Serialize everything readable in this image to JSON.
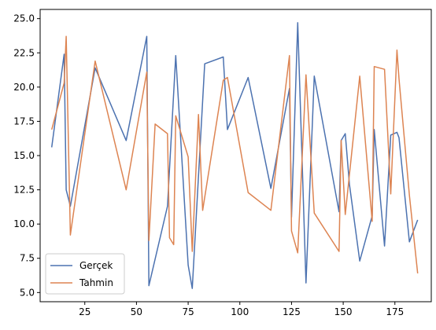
{
  "chart_data": {
    "type": "line",
    "xlim": [
      3.4,
      192.6
    ],
    "ylim": [
      4.33,
      25.67
    ],
    "x_ticks": [
      25,
      50,
      75,
      100,
      125,
      150,
      175
    ],
    "x_tick_labels": [
      "25",
      "50",
      "75",
      "100",
      "125",
      "150",
      "175"
    ],
    "y_ticks": [
      5.0,
      7.5,
      10.0,
      12.5,
      15.0,
      17.5,
      20.0,
      22.5,
      25.0
    ],
    "y_tick_labels": [
      "5.0",
      "7.5",
      "10.0",
      "12.5",
      "15.0",
      "17.5",
      "20.0",
      "22.5",
      "25.0"
    ],
    "grid": false,
    "legend_position": "lower-left",
    "series": [
      {
        "name": "Gerçek",
        "color": "#4c72b0",
        "x": [
          9,
          15,
          16,
          18,
          30,
          45,
          55,
          56,
          65,
          69,
          75,
          77,
          83,
          92,
          94,
          104,
          115,
          124,
          125,
          128,
          132,
          136,
          148,
          149,
          151,
          153,
          158,
          164,
          165,
          170,
          173,
          176,
          177,
          182,
          186
        ],
        "y": [
          15.6,
          22.4,
          12.5,
          11.3,
          21.4,
          16.1,
          23.7,
          5.5,
          11.3,
          22.3,
          7.0,
          5.3,
          21.7,
          22.2,
          16.9,
          20.7,
          12.6,
          19.9,
          10.5,
          24.7,
          5.7,
          20.8,
          10.9,
          16.1,
          16.6,
          12.9,
          7.3,
          10.6,
          16.9,
          8.4,
          16.5,
          16.7,
          16.3,
          8.7,
          10.3
        ]
      },
      {
        "name": "Tahmin",
        "color": "#dd8452",
        "x": [
          9,
          15,
          16,
          18,
          30,
          45,
          55,
          56,
          59,
          65,
          66,
          68,
          69,
          75,
          77,
          80,
          82,
          92,
          94,
          104,
          115,
          124,
          125,
          128,
          132,
          136,
          148,
          149,
          151,
          158,
          164,
          165,
          170,
          173,
          176,
          177,
          182,
          186
        ],
        "y": [
          16.9,
          20.3,
          23.7,
          9.2,
          21.9,
          12.5,
          21.1,
          8.8,
          17.3,
          16.6,
          9.0,
          8.5,
          17.9,
          14.9,
          8.0,
          18.0,
          11.0,
          20.5,
          20.7,
          12.3,
          11.0,
          22.3,
          9.5,
          7.9,
          20.9,
          10.8,
          8.0,
          16.1,
          10.7,
          20.8,
          10.2,
          21.5,
          21.3,
          12.2,
          22.7,
          20.6,
          12.1,
          6.4
        ]
      }
    ]
  }
}
